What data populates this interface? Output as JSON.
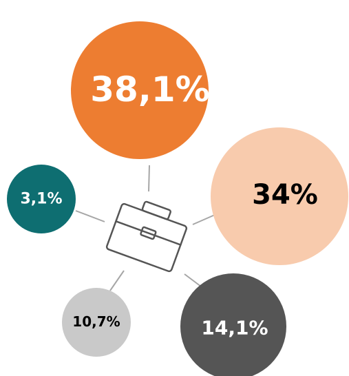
{
  "nodes": [
    {
      "label": "38,1%"
    },
    {
      "label": "34%"
    },
    {
      "label": "3,1%"
    },
    {
      "label": "10,7%"
    },
    {
      "label": "14,1%"
    }
  ]
}
